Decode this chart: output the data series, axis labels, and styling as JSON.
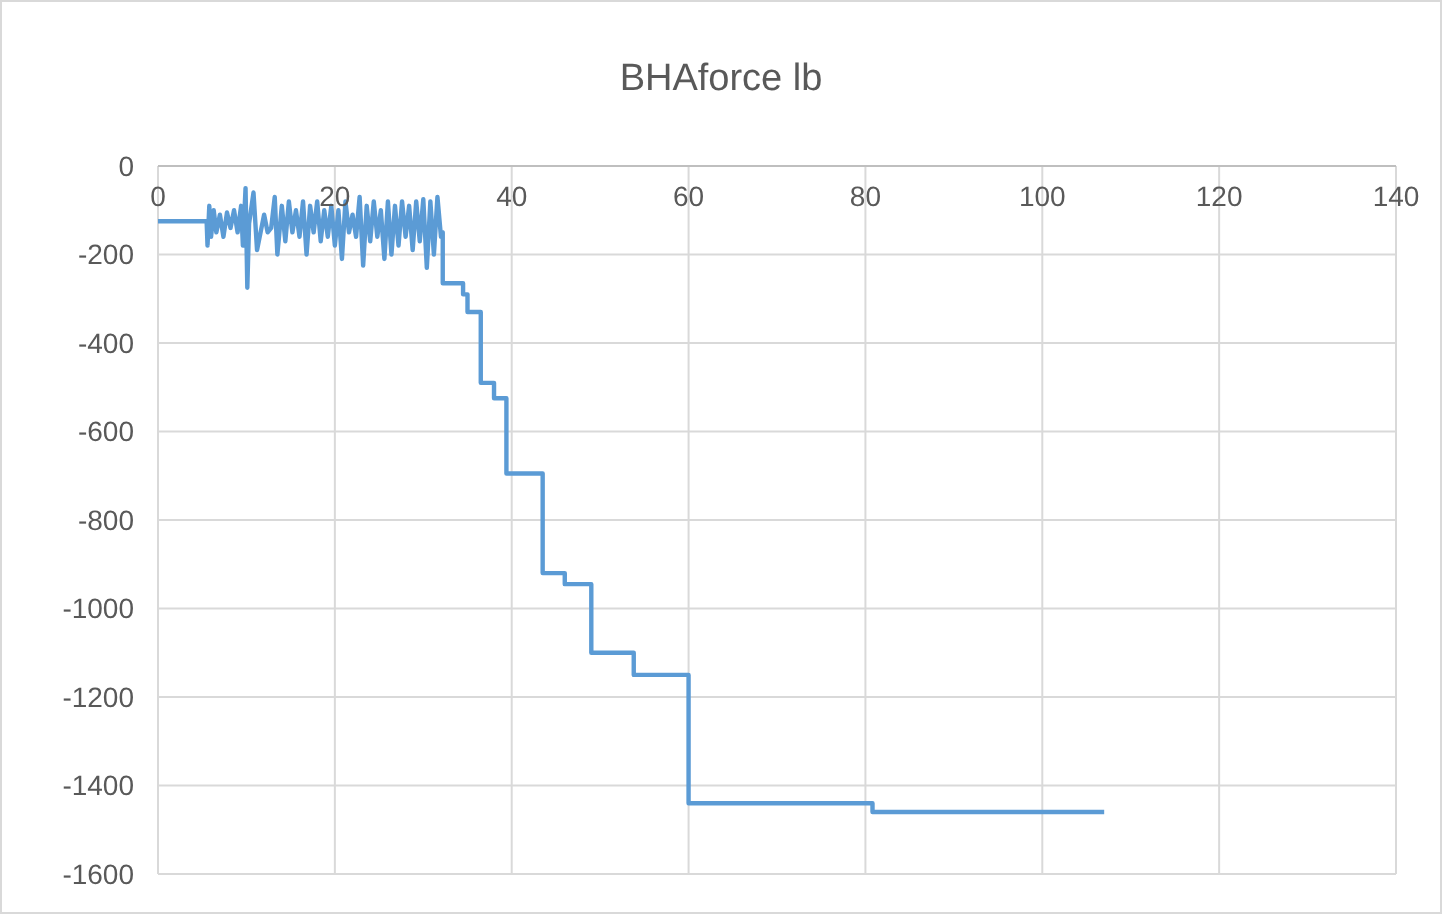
{
  "chart_data": {
    "type": "line",
    "title": "BHAforce lb",
    "grid": true,
    "marker": "none",
    "line_style": "solid",
    "xlim": [
      0,
      140
    ],
    "xticks": [
      0,
      20,
      40,
      60,
      80,
      100,
      120,
      140
    ],
    "ylim": [
      -1600,
      0
    ],
    "yticks": [
      -1600,
      -1400,
      -1200,
      -1000,
      -800,
      -600,
      -400,
      -200,
      0
    ],
    "series": [
      {
        "color": "#5b9bd5",
        "x": [
          0,
          5.5,
          5.6,
          5.8,
          6,
          6.3,
          6.6,
          7,
          7.4,
          7.8,
          8.2,
          8.6,
          9,
          9.4,
          9.6,
          9.9,
          10.1,
          10.3,
          10.8,
          11.2,
          11.6,
          12,
          12.4,
          12.8,
          13.2,
          13.5,
          14,
          14.4,
          14.8,
          15.2,
          15.6,
          16,
          16.4,
          16.8,
          17.2,
          17.6,
          18,
          18.4,
          18.8,
          19.2,
          19.6,
          20,
          20.4,
          20.8,
          21.2,
          21.6,
          22,
          22.4,
          22.8,
          23.2,
          23.6,
          24,
          24.4,
          24.8,
          25.2,
          25.6,
          26,
          26.4,
          26.8,
          27.2,
          27.6,
          28,
          28.4,
          28.8,
          29.2,
          29.6,
          30,
          30.4,
          30.8,
          31.2,
          31.6,
          32,
          32.2,
          32.2,
          34.5,
          34.5,
          35,
          35,
          36.5,
          36.5,
          38,
          38,
          39.4,
          39.4,
          43.5,
          43.5,
          46,
          46,
          49,
          49,
          53.8,
          53.8,
          60,
          60,
          80.8,
          80.8,
          107
        ],
        "values": [
          -125,
          -125,
          -180,
          -90,
          -160,
          -100,
          -150,
          -110,
          -160,
          -105,
          -140,
          -100,
          -150,
          -90,
          -180,
          -50,
          -275,
          -130,
          -60,
          -190,
          -150,
          -110,
          -150,
          -140,
          -70,
          -200,
          -90,
          -170,
          -80,
          -150,
          -100,
          -160,
          -80,
          -200,
          -90,
          -150,
          -80,
          -170,
          -100,
          -160,
          -90,
          -180,
          -100,
          -210,
          -80,
          -150,
          -110,
          -160,
          -70,
          -225,
          -90,
          -170,
          -80,
          -160,
          -100,
          -210,
          -80,
          -200,
          -90,
          -180,
          -80,
          -160,
          -90,
          -190,
          -80,
          -170,
          -75,
          -230,
          -80,
          -200,
          -70,
          -160,
          -150,
          -265,
          -265,
          -290,
          -290,
          -330,
          -330,
          -490,
          -490,
          -525,
          -525,
          -695,
          -695,
          -920,
          -920,
          -945,
          -945,
          -1100,
          -1100,
          -1150,
          -1150,
          -1440,
          -1440,
          -1460,
          -1460
        ]
      }
    ]
  }
}
